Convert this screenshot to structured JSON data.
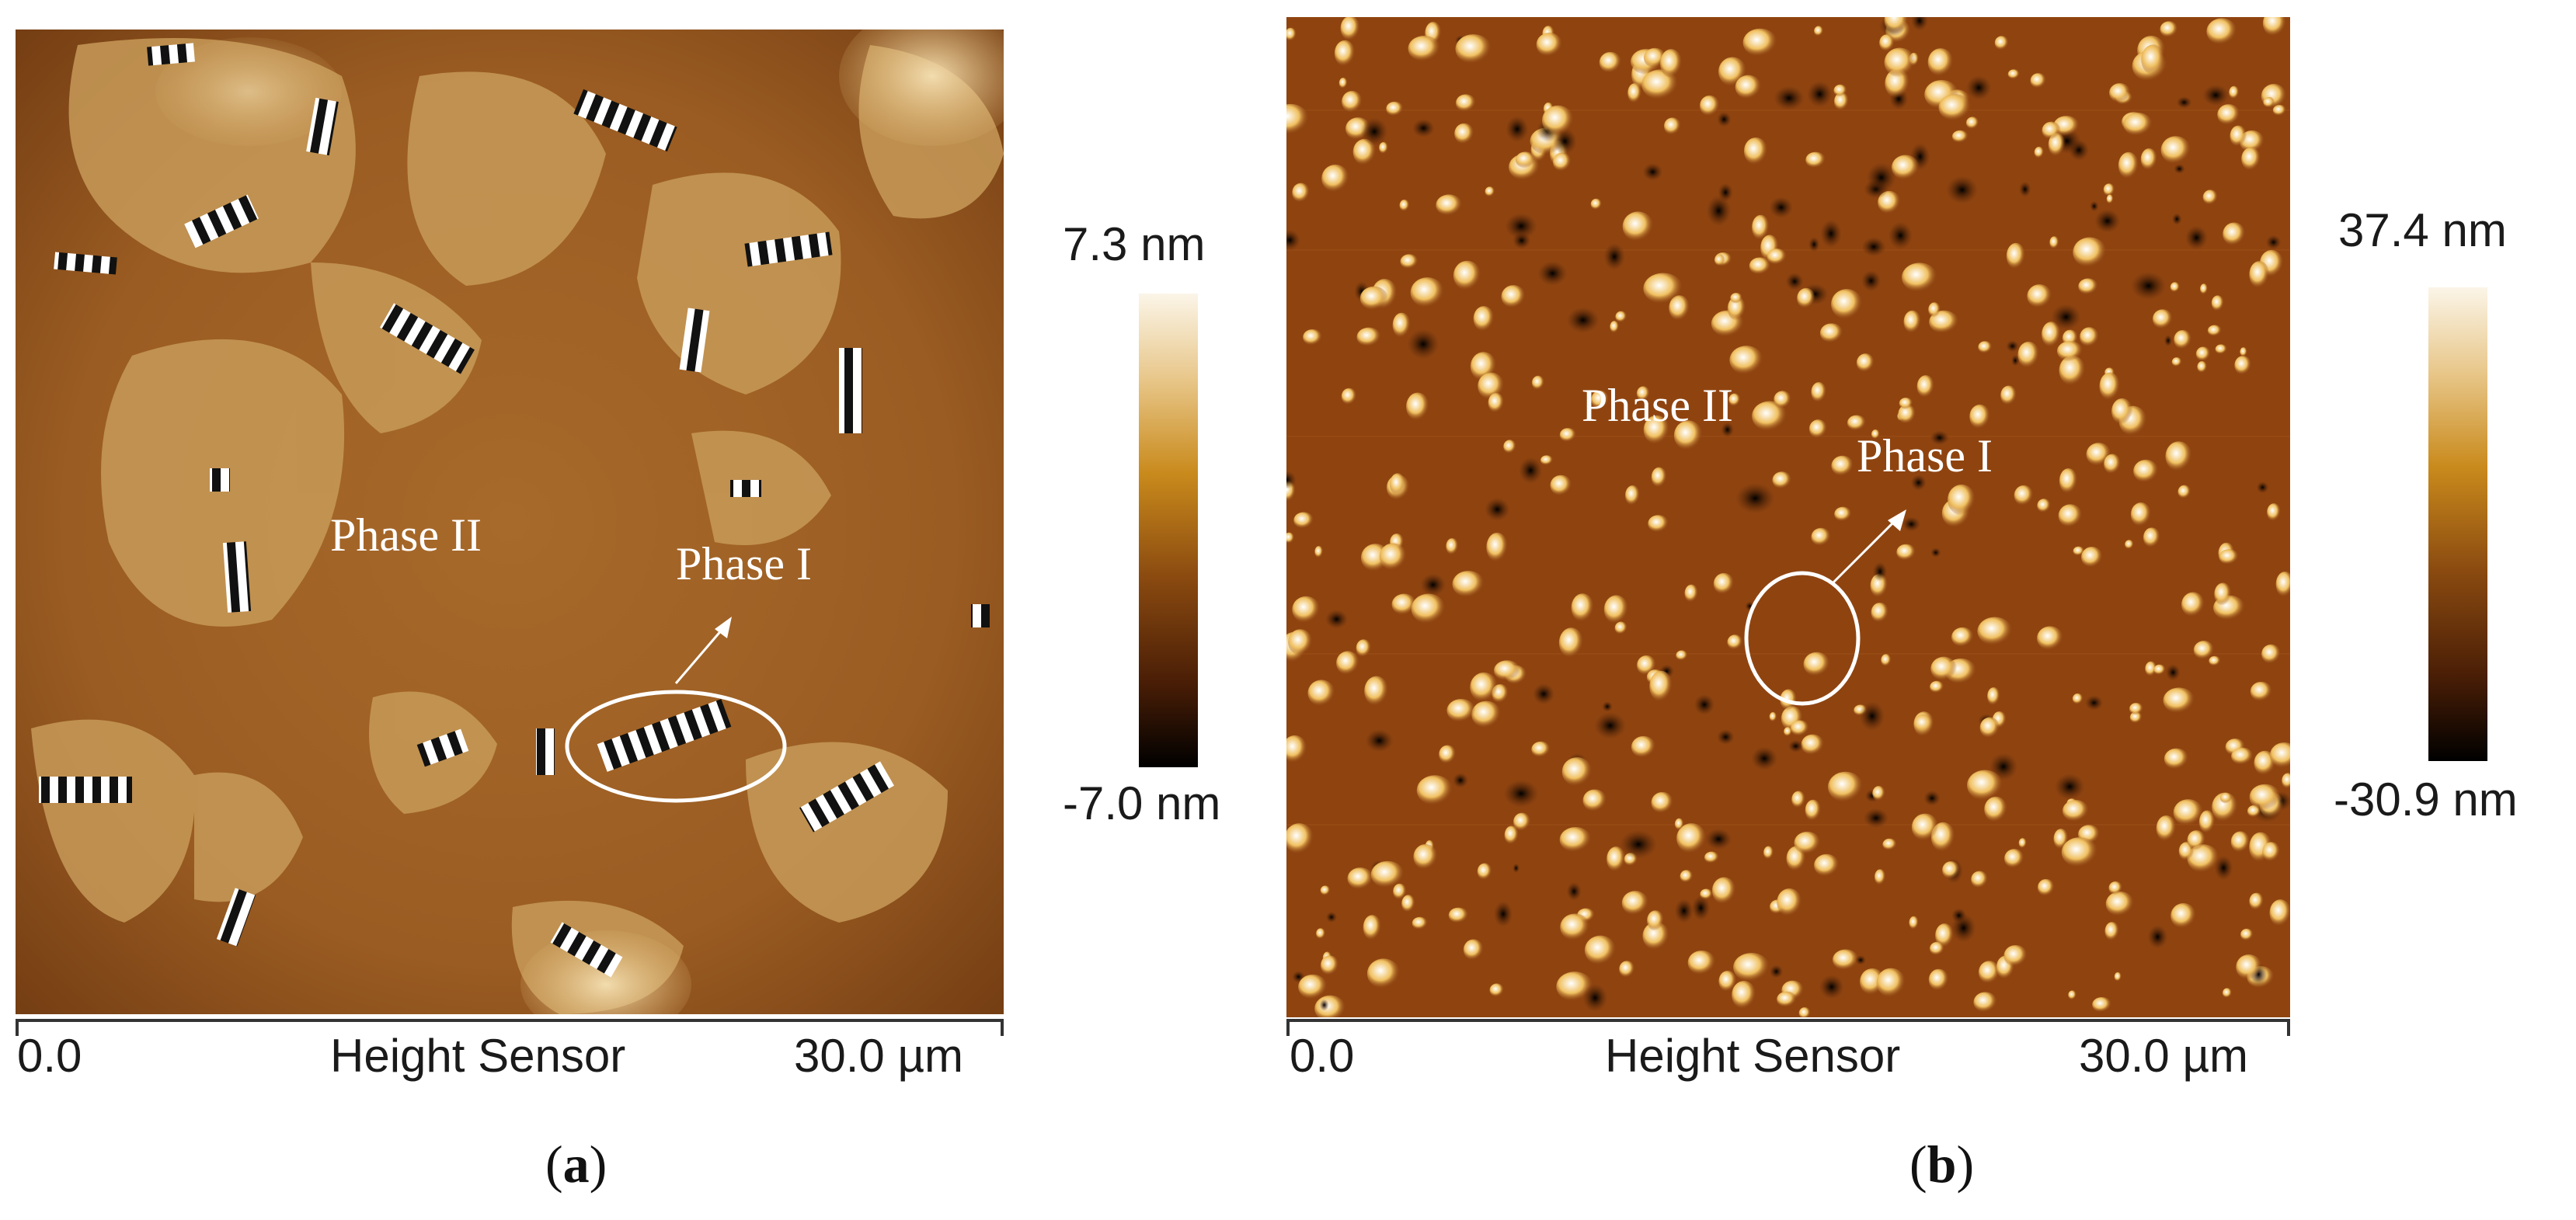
{
  "panels": [
    {
      "label": "a",
      "axis": {
        "start": "0.0",
        "title": "Height Sensor",
        "end": "30.0 µm"
      },
      "colorbar": {
        "max": "7.3 nm",
        "min": "-7.0 nm",
        "colors": [
          "#ffffff",
          "#c98a1c",
          "#6b2e08",
          "#000000"
        ]
      },
      "annotations": {
        "phase_ii": "Phase II",
        "phase_i": "Phase I"
      },
      "background_color": "#b07634"
    },
    {
      "label": "b",
      "axis": {
        "start": "0.0",
        "title": "Height Sensor",
        "end": "30.0 µm"
      },
      "colorbar": {
        "max": "37.4 nm",
        "min": "-30.9 nm",
        "colors": [
          "#ffffff",
          "#c98a1c",
          "#6b2e08",
          "#000000"
        ]
      },
      "annotations": {
        "phase_ii": "Phase II",
        "phase_i": "Phase I"
      },
      "background_color": "#8f4410"
    }
  ]
}
